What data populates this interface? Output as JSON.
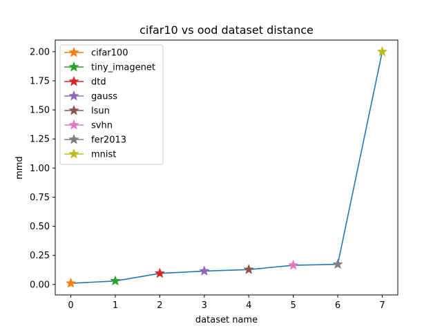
{
  "chart_data": {
    "type": "line",
    "title": "cifar10 vs ood dataset distance",
    "xlabel": "dataset name",
    "ylabel": "mmd",
    "xlim": [
      -0.35,
      7.35
    ],
    "ylim": [
      -0.09,
      2.1
    ],
    "xticks": [
      {
        "value": 0,
        "label": "0"
      },
      {
        "value": 1,
        "label": "1"
      },
      {
        "value": 2,
        "label": "2"
      },
      {
        "value": 3,
        "label": "3"
      },
      {
        "value": 4,
        "label": "4"
      },
      {
        "value": 5,
        "label": "5"
      },
      {
        "value": 6,
        "label": "6"
      },
      {
        "value": 7,
        "label": "7"
      }
    ],
    "yticks": [
      {
        "value": 0.0,
        "label": "0.00"
      },
      {
        "value": 0.25,
        "label": "0.25"
      },
      {
        "value": 0.5,
        "label": "0.50"
      },
      {
        "value": 0.75,
        "label": "0.75"
      },
      {
        "value": 1.0,
        "label": "1.00"
      },
      {
        "value": 1.25,
        "label": "1.25"
      },
      {
        "value": 1.5,
        "label": "1.50"
      },
      {
        "value": 1.75,
        "label": "1.75"
      },
      {
        "value": 2.0,
        "label": "2.00"
      }
    ],
    "grid": false,
    "legend_position": "upper left",
    "line_color": "#1f77b4",
    "x": [
      0,
      1,
      2,
      3,
      4,
      5,
      6,
      7
    ],
    "y": [
      0.01,
      0.03,
      0.095,
      0.115,
      0.128,
      0.165,
      0.173,
      2.0
    ],
    "points": [
      {
        "name": "cifar100",
        "x": 0,
        "y": 0.01,
        "color": "#ff7f0e"
      },
      {
        "name": "tiny_imagenet",
        "x": 1,
        "y": 0.03,
        "color": "#2ca02c"
      },
      {
        "name": "dtd",
        "x": 2,
        "y": 0.095,
        "color": "#d62728"
      },
      {
        "name": "gauss",
        "x": 3,
        "y": 0.115,
        "color": "#9467bd"
      },
      {
        "name": "lsun",
        "x": 4,
        "y": 0.128,
        "color": "#8c564b"
      },
      {
        "name": "svhn",
        "x": 5,
        "y": 0.165,
        "color": "#e377c2"
      },
      {
        "name": "fer2013",
        "x": 6,
        "y": 0.173,
        "color": "#7f7f7f"
      },
      {
        "name": "mnist",
        "x": 7,
        "y": 2.0,
        "color": "#bcbd22"
      }
    ]
  }
}
